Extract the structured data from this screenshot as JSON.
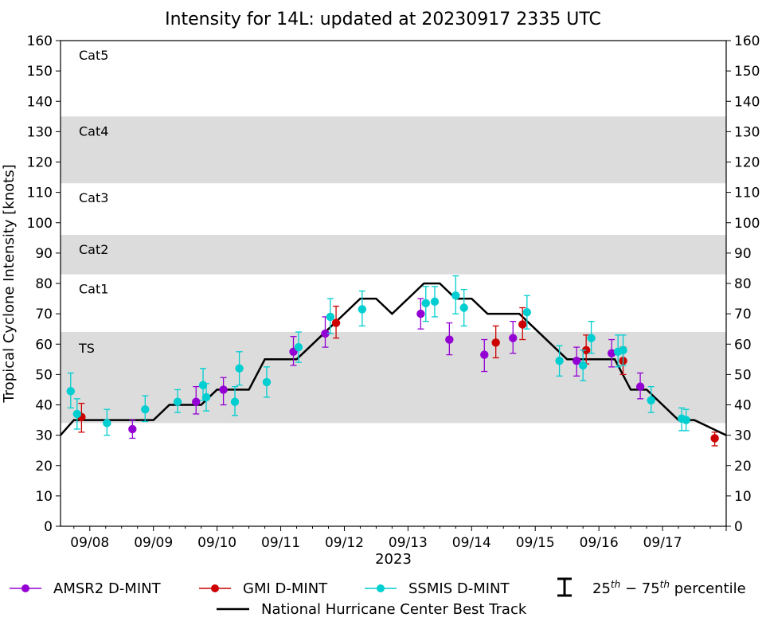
{
  "chart_data": {
    "type": "scatter",
    "title": "Intensity for 14L: updated at 20230917 2335 UTC",
    "ylabel": "Tropical Cyclone Intensity [knots]",
    "xlabel": "2023",
    "ylim": [
      0,
      160
    ],
    "yticks": [
      0,
      10,
      20,
      30,
      40,
      50,
      60,
      70,
      80,
      90,
      100,
      110,
      120,
      130,
      140,
      150,
      160
    ],
    "xlim_day": [
      7.54,
      18.0
    ],
    "xticks": [
      {
        "day": 8,
        "label": "09/08"
      },
      {
        "day": 9,
        "label": "09/09"
      },
      {
        "day": 10,
        "label": "09/10"
      },
      {
        "day": 11,
        "label": "09/11"
      },
      {
        "day": 12,
        "label": "09/12"
      },
      {
        "day": 13,
        "label": "09/13"
      },
      {
        "day": 14,
        "label": "09/14"
      },
      {
        "day": 15,
        "label": "09/15"
      },
      {
        "day": 16,
        "label": "09/16"
      },
      {
        "day": 17,
        "label": "09/17"
      }
    ],
    "categories": [
      {
        "label": "TS",
        "min": 34,
        "max": 64,
        "shaded": true
      },
      {
        "label": "Cat1",
        "min": 64,
        "max": 83,
        "shaded": false
      },
      {
        "label": "Cat2",
        "min": 83,
        "max": 96,
        "shaded": true
      },
      {
        "label": "Cat3",
        "min": 96,
        "max": 113,
        "shaded": false
      },
      {
        "label": "Cat4",
        "min": 113,
        "max": 135,
        "shaded": true
      },
      {
        "label": "Cat5",
        "min": 135,
        "max": 160,
        "shaded": false
      }
    ],
    "best_track": {
      "name": "National Hurricane Center Best Track",
      "color": "#000000",
      "points": [
        [
          7.54,
          30
        ],
        [
          7.75,
          35
        ],
        [
          8.0,
          35
        ],
        [
          8.25,
          35
        ],
        [
          8.5,
          35
        ],
        [
          8.75,
          35
        ],
        [
          9.0,
          35
        ],
        [
          9.25,
          40
        ],
        [
          9.5,
          40
        ],
        [
          9.75,
          40
        ],
        [
          10.0,
          45
        ],
        [
          10.25,
          45
        ],
        [
          10.5,
          45
        ],
        [
          10.75,
          55
        ],
        [
          11.0,
          55
        ],
        [
          11.25,
          55
        ],
        [
          11.5,
          60
        ],
        [
          11.75,
          65
        ],
        [
          12.0,
          70
        ],
        [
          12.25,
          75
        ],
        [
          12.5,
          75
        ],
        [
          12.75,
          70
        ],
        [
          13.0,
          75
        ],
        [
          13.25,
          80
        ],
        [
          13.5,
          80
        ],
        [
          13.75,
          75
        ],
        [
          14.0,
          75
        ],
        [
          14.25,
          70
        ],
        [
          14.5,
          70
        ],
        [
          14.75,
          70
        ],
        [
          15.0,
          65
        ],
        [
          15.25,
          60
        ],
        [
          15.5,
          55
        ],
        [
          15.75,
          55
        ],
        [
          16.0,
          55
        ],
        [
          16.25,
          55
        ],
        [
          16.5,
          45
        ],
        [
          16.75,
          45
        ],
        [
          17.0,
          40
        ],
        [
          17.25,
          35
        ],
        [
          17.5,
          35
        ],
        [
          17.75,
          32.5
        ],
        [
          18.0,
          30
        ]
      ]
    },
    "series": [
      {
        "name": "AMSR2 D-MINT",
        "color": "#9400d3",
        "points": [
          {
            "x": 8.67,
            "y": 32,
            "lo": 29,
            "hi": 35
          },
          {
            "x": 9.67,
            "y": 41,
            "lo": 37,
            "hi": 46
          },
          {
            "x": 10.1,
            "y": 45,
            "lo": 40,
            "hi": 49
          },
          {
            "x": 11.2,
            "y": 57.5,
            "lo": 53,
            "hi": 62.5
          },
          {
            "x": 11.7,
            "y": 63.5,
            "lo": 59,
            "hi": 69
          },
          {
            "x": 13.2,
            "y": 70,
            "lo": 65,
            "hi": 75
          },
          {
            "x": 13.65,
            "y": 61.5,
            "lo": 56.5,
            "hi": 67
          },
          {
            "x": 14.2,
            "y": 56.5,
            "lo": 51,
            "hi": 61.5
          },
          {
            "x": 14.65,
            "y": 62,
            "lo": 57,
            "hi": 67.5
          },
          {
            "x": 15.65,
            "y": 54.5,
            "lo": 49.5,
            "hi": 59
          },
          {
            "x": 16.2,
            "y": 57,
            "lo": 52.5,
            "hi": 61.5
          },
          {
            "x": 16.65,
            "y": 46,
            "lo": 42,
            "hi": 50.5
          }
        ]
      },
      {
        "name": "GMI D-MINT",
        "color": "#cc0000",
        "points": [
          {
            "x": 7.87,
            "y": 36,
            "lo": 31,
            "hi": 40.5
          },
          {
            "x": 11.87,
            "y": 67,
            "lo": 62,
            "hi": 72.5
          },
          {
            "x": 14.38,
            "y": 60.5,
            "lo": 55.5,
            "hi": 66
          },
          {
            "x": 14.8,
            "y": 66.5,
            "lo": 61.5,
            "hi": 72
          },
          {
            "x": 15.8,
            "y": 58,
            "lo": 53.5,
            "hi": 63
          },
          {
            "x": 16.38,
            "y": 54.5,
            "lo": 50,
            "hi": 59
          },
          {
            "x": 17.82,
            "y": 29,
            "lo": 26.5,
            "hi": 31
          }
        ]
      },
      {
        "name": "SSMIS D-MINT",
        "color": "#00ced1",
        "points": [
          {
            "x": 7.7,
            "y": 44.5,
            "lo": 39,
            "hi": 50.5
          },
          {
            "x": 7.8,
            "y": 37,
            "lo": 32,
            "hi": 42
          },
          {
            "x": 8.27,
            "y": 34,
            "lo": 30,
            "hi": 38.5
          },
          {
            "x": 8.87,
            "y": 38.5,
            "lo": 34.5,
            "hi": 43
          },
          {
            "x": 9.38,
            "y": 41,
            "lo": 37.5,
            "hi": 45
          },
          {
            "x": 9.78,
            "y": 46.5,
            "lo": 41.5,
            "hi": 52
          },
          {
            "x": 9.83,
            "y": 42.5,
            "lo": 38,
            "hi": 47
          },
          {
            "x": 10.28,
            "y": 41,
            "lo": 36.5,
            "hi": 46
          },
          {
            "x": 10.35,
            "y": 52,
            "lo": 46.5,
            "hi": 57.5
          },
          {
            "x": 10.78,
            "y": 47.5,
            "lo": 42.5,
            "hi": 52.5
          },
          {
            "x": 11.28,
            "y": 59,
            "lo": 54,
            "hi": 64
          },
          {
            "x": 11.78,
            "y": 69,
            "lo": 63.5,
            "hi": 75
          },
          {
            "x": 12.28,
            "y": 71.5,
            "lo": 66,
            "hi": 77.5
          },
          {
            "x": 13.28,
            "y": 73.5,
            "lo": 67.5,
            "hi": 79
          },
          {
            "x": 13.42,
            "y": 74,
            "lo": 69,
            "hi": 79
          },
          {
            "x": 13.75,
            "y": 76,
            "lo": 70,
            "hi": 82.5
          },
          {
            "x": 13.88,
            "y": 72,
            "lo": 66,
            "hi": 78
          },
          {
            "x": 14.87,
            "y": 70.5,
            "lo": 65,
            "hi": 76
          },
          {
            "x": 15.38,
            "y": 54.5,
            "lo": 49.5,
            "hi": 59.5
          },
          {
            "x": 15.75,
            "y": 53,
            "lo": 48,
            "hi": 58
          },
          {
            "x": 15.88,
            "y": 62,
            "lo": 57,
            "hi": 67.5
          },
          {
            "x": 16.3,
            "y": 57.5,
            "lo": 52.5,
            "hi": 63
          },
          {
            "x": 16.38,
            "y": 58,
            "lo": 53,
            "hi": 63
          },
          {
            "x": 16.82,
            "y": 41.5,
            "lo": 37.5,
            "hi": 46
          },
          {
            "x": 17.3,
            "y": 35.5,
            "lo": 31.5,
            "hi": 39
          },
          {
            "x": 17.37,
            "y": 35,
            "lo": 31.5,
            "hi": 38.5
          }
        ]
      }
    ],
    "legend": {
      "items": [
        "AMSR2 D-MINT",
        "GMI D-MINT",
        "SSMIS D-MINT",
        "25th – 75th percentile",
        "National Hurricane Center Best Track"
      ],
      "percentile_label_parts": [
        "25",
        "th",
        " − 75",
        "th",
        " percentile"
      ],
      "placement": "bottom"
    }
  }
}
